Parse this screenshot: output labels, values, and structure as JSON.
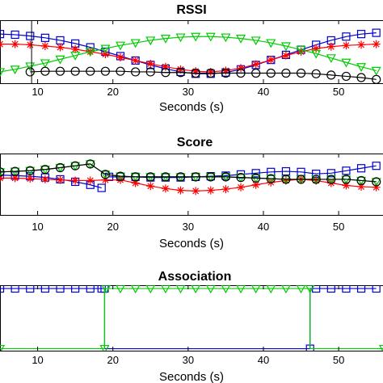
{
  "chart_data": [
    {
      "type": "line",
      "title": "RSSI",
      "xlabel": "Seconds (s)",
      "ylabel": "",
      "xlim": [
        5,
        56
      ],
      "xticks": [
        10,
        20,
        30,
        40,
        50
      ],
      "ylim": [
        0,
        1
      ],
      "grid": false,
      "series": [
        {
          "color": "#0000cc",
          "marker": "square",
          "x": [
            5,
            7,
            9,
            11,
            13,
            15,
            17,
            19,
            21,
            23,
            25,
            27,
            29,
            31,
            33,
            35,
            37,
            39,
            41,
            43,
            45,
            47,
            49,
            51,
            53,
            55
          ],
          "y": [
            0.78,
            0.77,
            0.75,
            0.72,
            0.68,
            0.63,
            0.57,
            0.5,
            0.43,
            0.36,
            0.29,
            0.23,
            0.18,
            0.15,
            0.15,
            0.17,
            0.22,
            0.29,
            0.37,
            0.45,
            0.53,
            0.61,
            0.68,
            0.74,
            0.78,
            0.8
          ]
        },
        {
          "color": "#ff0000",
          "marker": "star",
          "x": [
            5,
            7,
            9,
            11,
            13,
            15,
            17,
            19,
            21,
            23,
            25,
            27,
            29,
            31,
            33,
            35,
            37,
            39,
            41,
            43,
            45,
            47,
            49,
            51,
            53,
            55
          ],
          "y": [
            0.62,
            0.62,
            0.61,
            0.59,
            0.57,
            0.54,
            0.5,
            0.46,
            0.41,
            0.36,
            0.31,
            0.26,
            0.22,
            0.19,
            0.18,
            0.2,
            0.24,
            0.3,
            0.37,
            0.44,
            0.5,
            0.55,
            0.58,
            0.6,
            0.61,
            0.62
          ]
        },
        {
          "color": "#00cc00",
          "marker": "triangle",
          "x": [
            5,
            7,
            9,
            11,
            13,
            15,
            17,
            19,
            21,
            23,
            25,
            27,
            29,
            31,
            33,
            35,
            37,
            39,
            41,
            43,
            45,
            47,
            49,
            51,
            53,
            55
          ],
          "y": [
            0.18,
            0.22,
            0.27,
            0.32,
            0.38,
            0.44,
            0.5,
            0.55,
            0.6,
            0.64,
            0.68,
            0.71,
            0.73,
            0.74,
            0.74,
            0.73,
            0.71,
            0.68,
            0.64,
            0.59,
            0.53,
            0.47,
            0.4,
            0.33,
            0.26,
            0.2
          ]
        },
        {
          "color": "#000000",
          "marker": "circle",
          "x": [
            9,
            11,
            13,
            15,
            17,
            19,
            21,
            23,
            25,
            27,
            29,
            31,
            33,
            35,
            37,
            39,
            41,
            43,
            45,
            47,
            49,
            51,
            53,
            55
          ],
          "y": [
            0.18,
            0.19,
            0.19,
            0.19,
            0.19,
            0.19,
            0.19,
            0.18,
            0.18,
            0.17,
            0.17,
            0.16,
            0.16,
            0.16,
            0.16,
            0.16,
            0.16,
            0.16,
            0.16,
            0.15,
            0.13,
            0.11,
            0.09,
            0.06
          ]
        }
      ]
    },
    {
      "type": "line",
      "title": "Score",
      "xlabel": "Seconds (s)",
      "ylabel": "",
      "xlim": [
        5,
        56
      ],
      "xticks": [
        10,
        20,
        30,
        40,
        50
      ],
      "ylim": [
        0,
        1
      ],
      "grid": false,
      "series": [
        {
          "color": "#0000cc",
          "marker": "square",
          "x": [
            5,
            7,
            9,
            11,
            13,
            15,
            17,
            18.5
          ],
          "y": [
            0.65,
            0.64,
            0.63,
            0.61,
            0.58,
            0.54,
            0.49,
            0.44
          ]
        },
        {
          "color": "#0000cc",
          "marker": "square",
          "x": [
            19.5,
            21,
            23,
            25,
            27,
            29,
            31,
            33,
            35,
            37,
            39,
            41,
            43,
            45,
            47,
            49,
            51,
            53,
            55
          ],
          "y": [
            0.62,
            0.62,
            0.62,
            0.61,
            0.61,
            0.61,
            0.62,
            0.63,
            0.64,
            0.66,
            0.68,
            0.7,
            0.71,
            0.7,
            0.67,
            0.68,
            0.72,
            0.76,
            0.8
          ]
        },
        {
          "color": "#ff0000",
          "marker": "star",
          "x": [
            5,
            7,
            9,
            11,
            13,
            15,
            17,
            19,
            21,
            23,
            25,
            27,
            29,
            31,
            33,
            35,
            37,
            39,
            41,
            43,
            45,
            47,
            49,
            51,
            53,
            55
          ],
          "y": [
            0.6,
            0.6,
            0.59,
            0.58,
            0.57,
            0.56,
            0.56,
            0.57,
            0.57,
            0.52,
            0.47,
            0.43,
            0.4,
            0.39,
            0.4,
            0.42,
            0.45,
            0.49,
            0.53,
            0.56,
            0.58,
            0.56,
            0.52,
            0.48,
            0.46,
            0.45
          ]
        },
        {
          "color": "#00cc00",
          "marker": "triangle",
          "x": [
            5,
            7,
            9,
            11,
            13,
            15,
            17,
            19,
            21,
            23,
            25,
            27,
            29,
            31,
            33,
            35,
            37,
            39,
            41,
            43,
            45,
            47,
            49,
            51,
            53,
            55
          ],
          "y": [
            0.7,
            0.71,
            0.72,
            0.74,
            0.77,
            0.8,
            0.83,
            0.66,
            0.63,
            0.62,
            0.62,
            0.62,
            0.62,
            0.62,
            0.62,
            0.62,
            0.61,
            0.6,
            0.59,
            0.58,
            0.58,
            0.58,
            0.58,
            0.58,
            0.56,
            0.54
          ]
        },
        {
          "color": "#000000",
          "marker": "circle",
          "x": [
            5,
            7,
            9,
            11,
            13,
            15,
            17,
            19,
            21,
            23,
            25,
            27,
            29,
            31,
            33,
            35,
            37,
            39,
            41,
            43,
            45,
            47,
            49,
            51,
            53,
            55
          ],
          "y": [
            0.7,
            0.71,
            0.72,
            0.74,
            0.77,
            0.8,
            0.83,
            0.66,
            0.63,
            0.62,
            0.62,
            0.62,
            0.62,
            0.62,
            0.62,
            0.62,
            0.61,
            0.6,
            0.59,
            0.58,
            0.58,
            0.58,
            0.58,
            0.58,
            0.56,
            0.54
          ]
        }
      ]
    },
    {
      "type": "line",
      "title": "Association",
      "xlabel": "Seconds (s)",
      "ylabel": "",
      "xlim": [
        5,
        56
      ],
      "xticks": [
        10,
        20,
        30,
        40,
        50
      ],
      "ylim": [
        0,
        1
      ],
      "grid": false,
      "series": [
        {
          "color": "#0000cc",
          "marker": "square",
          "x": [
            5,
            7,
            9,
            11,
            13,
            15,
            17,
            18.5,
            18.9,
            18.9,
            46.2,
            46.2,
            47,
            49,
            51,
            53,
            55
          ],
          "y": [
            0.95,
            0.95,
            0.95,
            0.95,
            0.95,
            0.95,
            0.95,
            0.95,
            0.95,
            0.03,
            0.03,
            0.95,
            0.95,
            0.95,
            0.95,
            0.95,
            0.95
          ]
        },
        {
          "color": "#00cc00",
          "marker": "triangle",
          "x": [
            5,
            18.9,
            18.9,
            19.1,
            21,
            23,
            25,
            27,
            29,
            31,
            33,
            35,
            37,
            39,
            41,
            43,
            45,
            46.2,
            46.2,
            56
          ],
          "y": [
            0.03,
            0.03,
            0.95,
            0.95,
            0.95,
            0.95,
            0.95,
            0.95,
            0.95,
            0.95,
            0.95,
            0.95,
            0.95,
            0.95,
            0.95,
            0.95,
            0.95,
            0.95,
            0.03,
            0.03
          ]
        }
      ]
    }
  ]
}
